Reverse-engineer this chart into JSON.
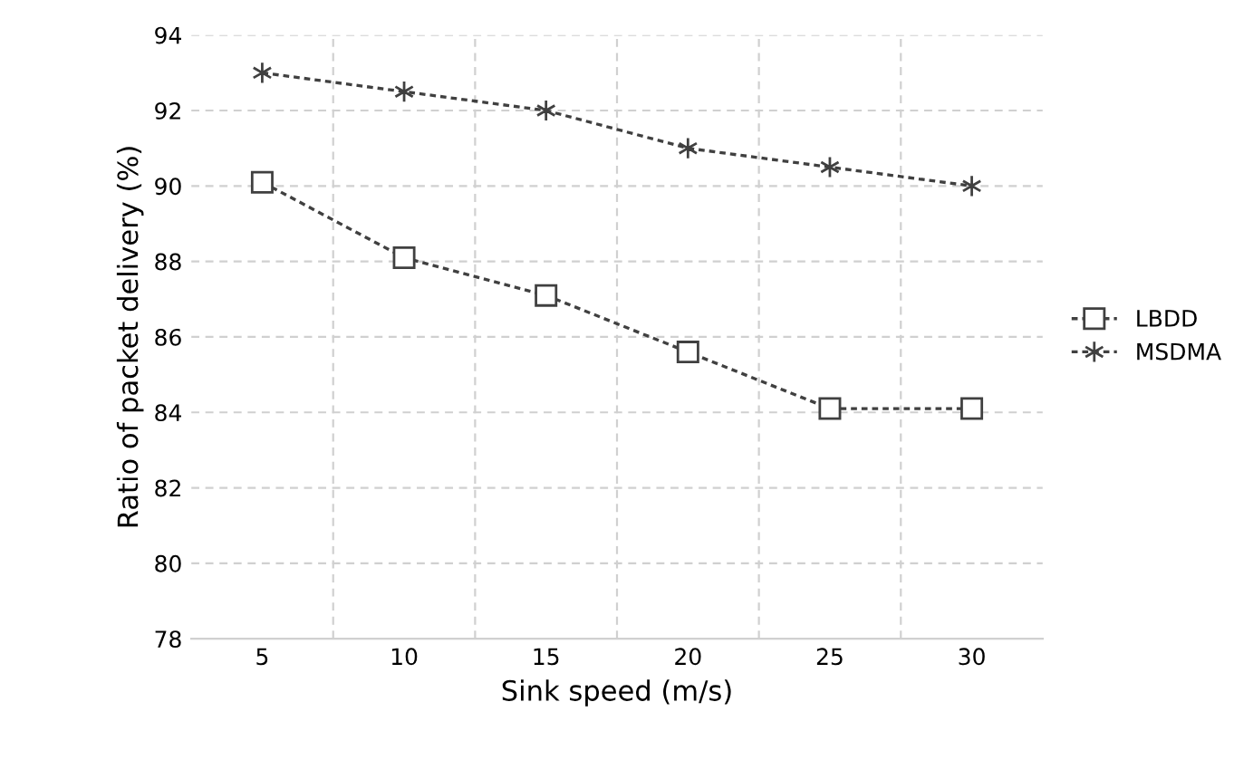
{
  "chart_data": {
    "type": "line",
    "xlabel": "Sink speed (m/s)",
    "ylabel": "Ratio of packet delivery (%)",
    "categories": [
      "5",
      "10",
      "15",
      "20",
      "25",
      "30"
    ],
    "series": [
      {
        "name": "LBDD",
        "color": "#404040",
        "marker": "square",
        "values": [
          90.1,
          88.1,
          87.1,
          85.6,
          84.1,
          84.1
        ]
      },
      {
        "name": "MSDMA",
        "color": "#404040",
        "marker": "cross",
        "values": [
          93.0,
          92.5,
          92.0,
          91.0,
          90.5,
          90.0
        ]
      }
    ],
    "ylim": [
      78,
      94
    ],
    "yticks": [
      78,
      80,
      82,
      84,
      86,
      88,
      90,
      92,
      94
    ],
    "grid": true,
    "legend": "right",
    "line_style": "dashed"
  }
}
